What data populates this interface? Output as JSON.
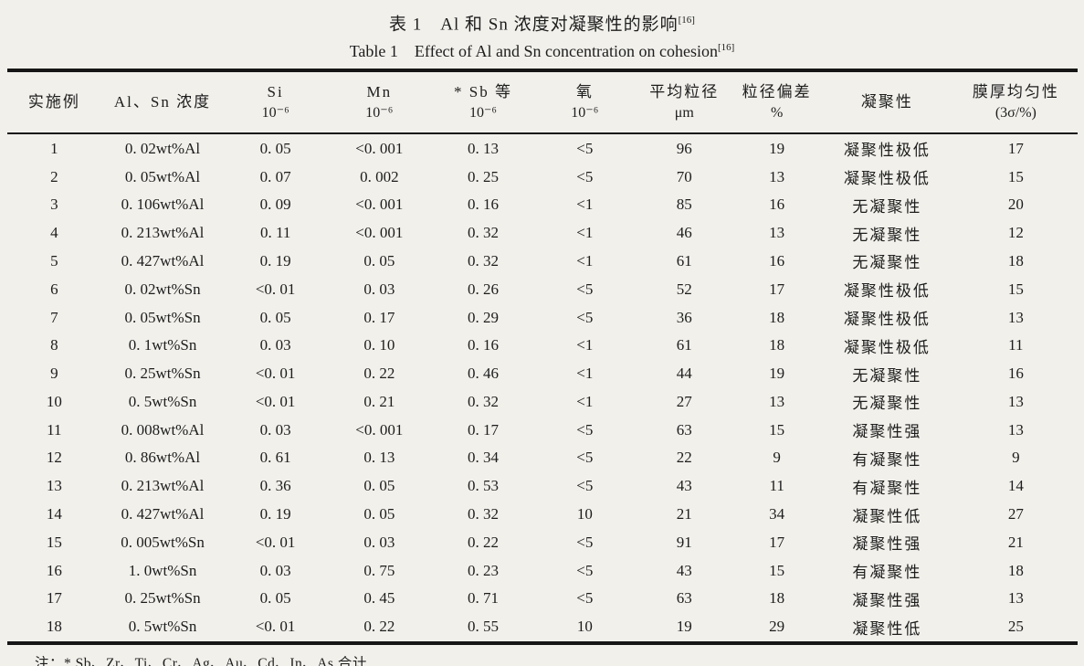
{
  "title": {
    "zh": "表 1　Al 和 Sn 浓度对凝聚性的影响",
    "en": "Table 1　Effect of Al and Sn concentration on cohesion",
    "ref": "[16]"
  },
  "table": {
    "columns": [
      {
        "key": "example",
        "line1": "实施例",
        "line2": ""
      },
      {
        "key": "conc",
        "line1": "Al、Sn 浓度",
        "line2": ""
      },
      {
        "key": "si",
        "line1": "Si",
        "line2": "10⁻⁶"
      },
      {
        "key": "mn",
        "line1": "Mn",
        "line2": "10⁻⁶"
      },
      {
        "key": "sb",
        "line1": "* Sb 等",
        "line2": "10⁻⁶"
      },
      {
        "key": "oxygen",
        "line1": "氧",
        "line2": "10⁻⁶"
      },
      {
        "key": "avg-size",
        "line1": "平均粒径",
        "line2": "μm"
      },
      {
        "key": "size-dev",
        "line1": "粒径偏差",
        "line2": "%"
      },
      {
        "key": "cohesion",
        "line1": "凝聚性",
        "line2": ""
      },
      {
        "key": "uniformity",
        "line1": "膜厚均匀性",
        "line2": "(3σ/%)"
      }
    ],
    "rows": [
      [
        "1",
        "0. 02wt%Al",
        "0. 05",
        "<0. 001",
        "0. 13",
        "<5",
        "96",
        "19",
        "凝聚性极低",
        "17"
      ],
      [
        "2",
        "0. 05wt%Al",
        "0. 07",
        "0. 002",
        "0. 25",
        "<5",
        "70",
        "13",
        "凝聚性极低",
        "15"
      ],
      [
        "3",
        "0. 106wt%Al",
        "0. 09",
        "<0. 001",
        "0. 16",
        "<1",
        "85",
        "16",
        "无凝聚性",
        "20"
      ],
      [
        "4",
        "0. 213wt%Al",
        "0. 11",
        "<0. 001",
        "0. 32",
        "<1",
        "46",
        "13",
        "无凝聚性",
        "12"
      ],
      [
        "5",
        "0. 427wt%Al",
        "0. 19",
        "0. 05",
        "0. 32",
        "<1",
        "61",
        "16",
        "无凝聚性",
        "18"
      ],
      [
        "6",
        "0. 02wt%Sn",
        "<0. 01",
        "0. 03",
        "0. 26",
        "<5",
        "52",
        "17",
        "凝聚性极低",
        "15"
      ],
      [
        "7",
        "0. 05wt%Sn",
        "0. 05",
        "0. 17",
        "0. 29",
        "<5",
        "36",
        "18",
        "凝聚性极低",
        "13"
      ],
      [
        "8",
        "0. 1wt%Sn",
        "0. 03",
        "0. 10",
        "0. 16",
        "<1",
        "61",
        "18",
        "凝聚性极低",
        "11"
      ],
      [
        "9",
        "0. 25wt%Sn",
        "<0. 01",
        "0. 22",
        "0. 46",
        "<1",
        "44",
        "19",
        "无凝聚性",
        "16"
      ],
      [
        "10",
        "0. 5wt%Sn",
        "<0. 01",
        "0. 21",
        "0. 32",
        "<1",
        "27",
        "13",
        "无凝聚性",
        "13"
      ],
      [
        "11",
        "0. 008wt%Al",
        "0. 03",
        "<0. 001",
        "0. 17",
        "<5",
        "63",
        "15",
        "凝聚性强",
        "13"
      ],
      [
        "12",
        "0. 86wt%Al",
        "0. 61",
        "0. 13",
        "0. 34",
        "<5",
        "22",
        "9",
        "有凝聚性",
        "9"
      ],
      [
        "13",
        "0. 213wt%Al",
        "0. 36",
        "0. 05",
        "0. 53",
        "<5",
        "43",
        "11",
        "有凝聚性",
        "14"
      ],
      [
        "14",
        "0. 427wt%Al",
        "0. 19",
        "0. 05",
        "0. 32",
        "10",
        "21",
        "34",
        "凝聚性低",
        "27"
      ],
      [
        "15",
        "0. 005wt%Sn",
        "<0. 01",
        "0. 03",
        "0. 22",
        "<5",
        "91",
        "17",
        "凝聚性强",
        "21"
      ],
      [
        "16",
        "1. 0wt%Sn",
        "0. 03",
        "0. 75",
        "0. 23",
        "<5",
        "43",
        "15",
        "有凝聚性",
        "18"
      ],
      [
        "17",
        "0. 25wt%Sn",
        "0. 05",
        "0. 45",
        "0. 71",
        "<5",
        "63",
        "18",
        "凝聚性强",
        "13"
      ],
      [
        "18",
        "0. 5wt%Sn",
        "<0. 01",
        "0. 22",
        "0. 55",
        "10",
        "19",
        "29",
        "凝聚性低",
        "25"
      ]
    ]
  },
  "footnote": "注：* Sb、Zr、Ti、Cr、Ag、Au、Cd、In、As 合计"
}
